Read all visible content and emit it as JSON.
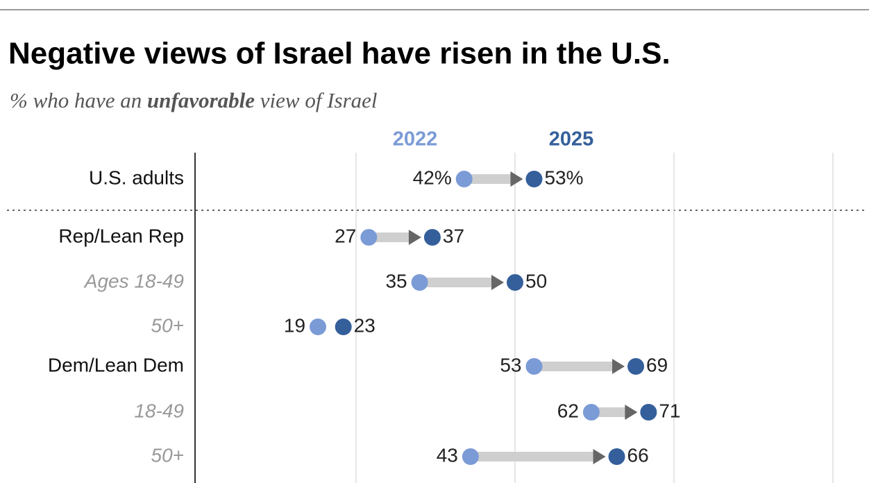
{
  "chart_data": {
    "type": "dumbbell",
    "title": "Negative views of Israel have risen in the U.S.",
    "subtitle_parts": [
      "% who have an ",
      "unfavorable",
      " view of Israel"
    ],
    "categories": [
      "U.S. adults",
      "Rep/Lean Rep",
      "Ages 18-49",
      "50+",
      "Dem/Lean Dem",
      "18-49",
      "50+"
    ],
    "series": [
      {
        "name": "2022",
        "color": "#7b9bd6",
        "values": [
          42,
          27,
          35,
          19,
          53,
          62,
          43
        ],
        "value_labels": [
          "42%",
          "27",
          "35",
          "19",
          "53",
          "62",
          "43"
        ]
      },
      {
        "name": "2025",
        "color": "#345f9b",
        "values": [
          53,
          37,
          50,
          23,
          69,
          71,
          66
        ],
        "value_labels": [
          "53%",
          "37",
          "50",
          "23",
          "69",
          "71",
          "66"
        ]
      }
    ],
    "xlim": [
      0,
      100
    ],
    "xticks": [
      25,
      50,
      75,
      100
    ],
    "grid": true
  }
}
